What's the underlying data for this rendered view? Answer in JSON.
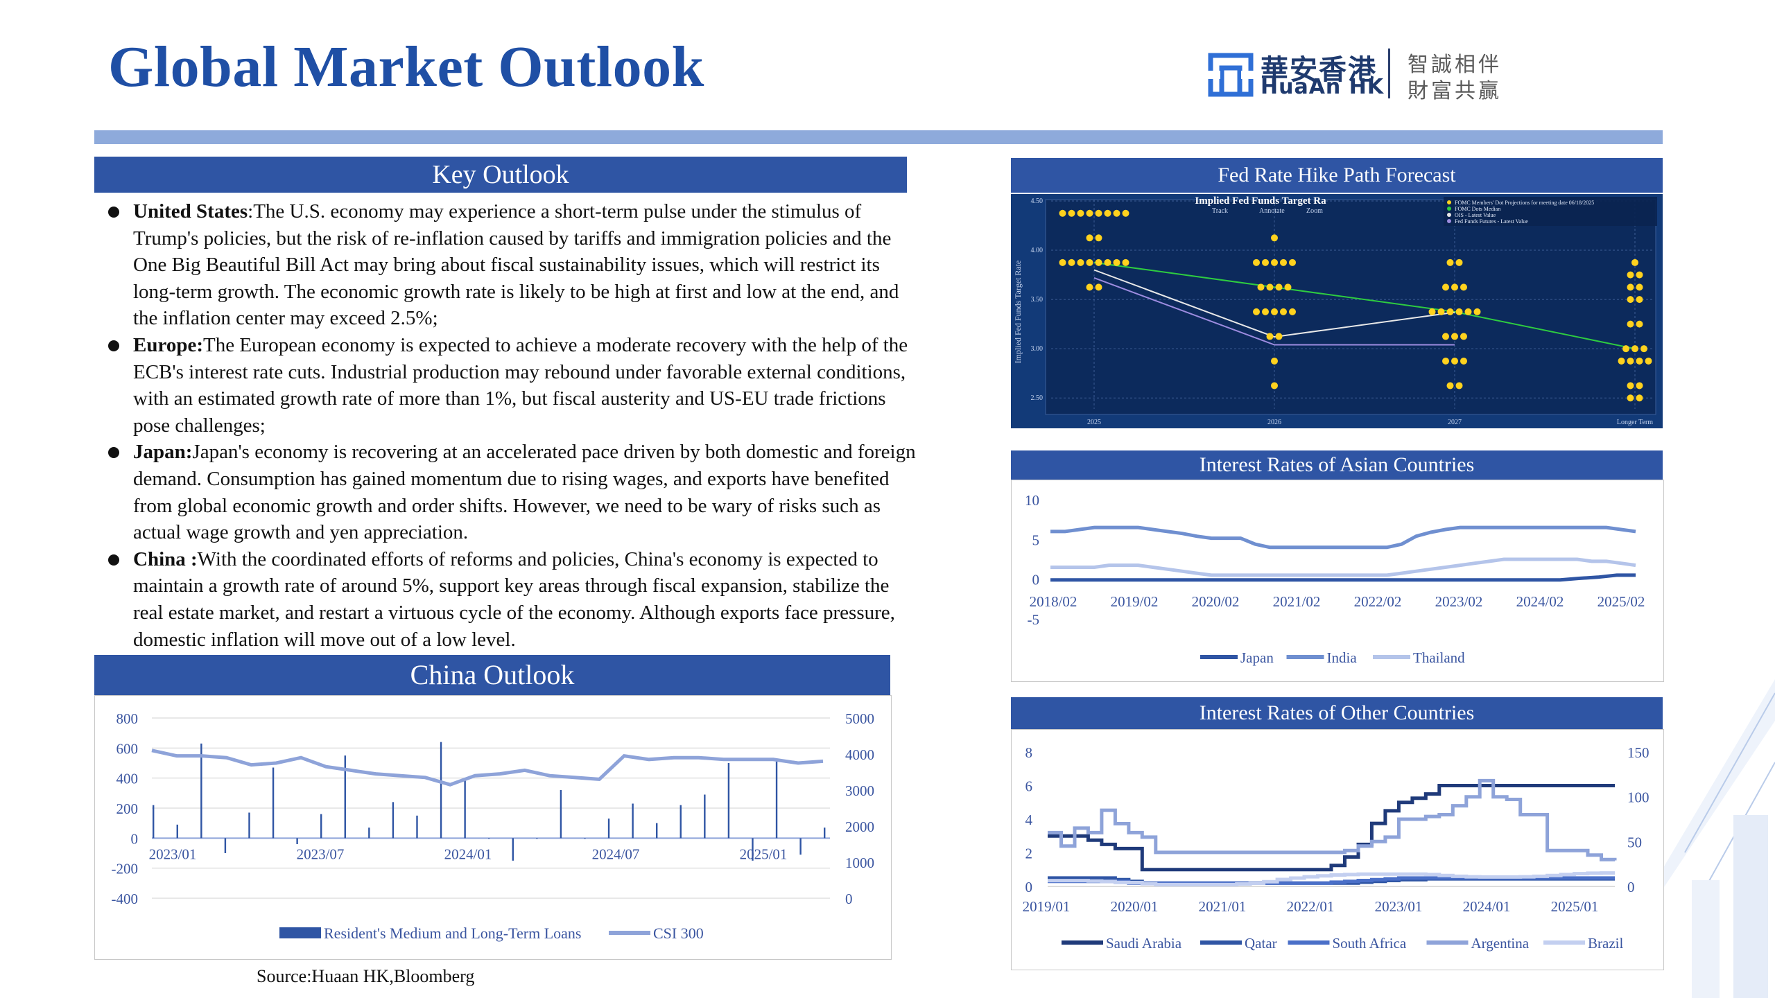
{
  "title": "Global Market Outlook",
  "logo": {
    "cn": "華安香港",
    "en": "HuaAn HK",
    "slogan1": "智誠相伴",
    "slogan2": "財富共贏"
  },
  "key_outlook": {
    "heading": "Key Outlook",
    "bullets": [
      {
        "label": "United States",
        "sep": ":",
        "text": "The U.S. economy may experience a short-term pulse under the stimulus of Trump's policies, but the risk of re-inflation caused by tariffs and immigration policies and the One Big Beautiful Bill Act may bring about fiscal sustainability issues, which will restrict its long-term growth. The economic growth rate is likely to be high at first and low at the end, and the inflation center may exceed 2.5%;"
      },
      {
        "label": "Europe:",
        "sep": "",
        "text": "The European economy is expected to achieve a moderate recovery with the help of the ECB's interest rate cuts. Industrial production may rebound under favorable external conditions, with an estimated growth rate of more than 1%, but fiscal austerity and US-EU trade frictions pose challenges;"
      },
      {
        "label": "Japan:",
        "sep": "",
        "text": "Japan's economy is recovering at an accelerated pace driven by both domestic and foreign demand. Consumption has gained momentum due to rising wages, and exports have benefited from global economic growth and order shifts. However, we need to be wary of risks such as actual wage growth and yen appreciation."
      },
      {
        "label": "China :",
        "sep": "",
        "text": "With the coordinated efforts of reforms and policies, China's economy is expected to maintain a growth rate of around 5%, support key areas through fiscal expansion, stabilize the real estate market, and restart a virtuous cycle of the economy. Although exports face pressure, domestic inflation will move out of a low level."
      }
    ]
  },
  "china_outlook": {
    "heading": "China Outlook"
  },
  "fed": {
    "heading": "Fed Rate Hike Path Forecast",
    "chart_title": "Implied Fed Funds Target Ra",
    "ylabel": "Implied Fed Funds Target Rate",
    "toolbar": [
      "Track",
      "Annotate",
      "Zoom"
    ],
    "legend": [
      "FOMC Members' Dot Projections for meeting date 06/18/2025",
      "FOMC Dots Median",
      "OIS - Latest Value",
      "Fed Funds Futures - Latest Value"
    ]
  },
  "source": "Source:Huaan HK,Bloomberg",
  "chart_data": [
    {
      "type": "line",
      "title": "China Outlook",
      "x_ticks": [
        "2023/01",
        "2023/07",
        "2024/01",
        "2024/07",
        "2025/01"
      ],
      "yleft_ticks": [
        "800",
        "600",
        "400",
        "200",
        "0",
        "-200",
        "-400"
      ],
      "yright_ticks": [
        "5000",
        "4000",
        "3000",
        "2000",
        "1000",
        "0"
      ],
      "ylim_left": [
        -400,
        800
      ],
      "ylim_right": [
        0,
        5000
      ],
      "series": [
        {
          "name": "Resident's Medium and Long-Term Loans",
          "kind": "bar",
          "axis": "left",
          "color": "#2f55a4",
          "values": [
            220,
            90,
            630,
            -100,
            170,
            470,
            -40,
            160,
            550,
            70,
            240,
            150,
            640,
            390,
            0,
            -150,
            0,
            320,
            0,
            130,
            230,
            100,
            220,
            290,
            500,
            -150,
            510,
            -110,
            70
          ]
        },
        {
          "name": "CSI 300",
          "kind": "line",
          "axis": "right",
          "color": "#8ea3d9",
          "values": [
            4100,
            3950,
            3950,
            3900,
            3700,
            3750,
            3900,
            3650,
            3550,
            3450,
            3400,
            3350,
            3150,
            3400,
            3450,
            3550,
            3400,
            3350,
            3300,
            3950,
            3850,
            3900,
            3900,
            3850,
            3850,
            3850,
            3750,
            3800
          ]
        }
      ]
    },
    {
      "type": "scatter",
      "title": "Implied Fed Funds Target Rate",
      "x_ticks": [
        "2025",
        "2026",
        "2027",
        "Longer Term"
      ],
      "y_ticks": [
        "4.50",
        "4.00",
        "3.50",
        "3.00",
        "2.50"
      ],
      "ylim": [
        2.375,
        4.5
      ],
      "dots": [
        {
          "x": "2025",
          "y": 4.375,
          "n": 8
        },
        {
          "x": "2025",
          "y": 4.125,
          "n": 2
        },
        {
          "x": "2025",
          "y": 3.875,
          "n": 8
        },
        {
          "x": "2025",
          "y": 3.625,
          "n": 2
        },
        {
          "x": "2026",
          "y": 4.125,
          "n": 1
        },
        {
          "x": "2026",
          "y": 3.875,
          "n": 5
        },
        {
          "x": "2026",
          "y": 3.625,
          "n": 4
        },
        {
          "x": "2026",
          "y": 3.375,
          "n": 5
        },
        {
          "x": "2026",
          "y": 3.125,
          "n": 2
        },
        {
          "x": "2026",
          "y": 2.875,
          "n": 1
        },
        {
          "x": "2026",
          "y": 2.625,
          "n": 1
        },
        {
          "x": "2027",
          "y": 3.875,
          "n": 2
        },
        {
          "x": "2027",
          "y": 3.625,
          "n": 3
        },
        {
          "x": "2027",
          "y": 3.375,
          "n": 6
        },
        {
          "x": "2027",
          "y": 3.125,
          "n": 3
        },
        {
          "x": "2027",
          "y": 2.875,
          "n": 3
        },
        {
          "x": "2027",
          "y": 2.625,
          "n": 2
        },
        {
          "x": "Longer Term",
          "y": 3.875,
          "n": 1
        },
        {
          "x": "Longer Term",
          "y": 3.75,
          "n": 2
        },
        {
          "x": "Longer Term",
          "y": 3.625,
          "n": 2
        },
        {
          "x": "Longer Term",
          "y": 3.5,
          "n": 2
        },
        {
          "x": "Longer Term",
          "y": 3.25,
          "n": 2
        },
        {
          "x": "Longer Term",
          "y": 3.0,
          "n": 3
        },
        {
          "x": "Longer Term",
          "y": 2.875,
          "n": 4
        },
        {
          "x": "Longer Term",
          "y": 2.625,
          "n": 2
        },
        {
          "x": "Longer Term",
          "y": 2.5,
          "n": 2
        }
      ],
      "lines": [
        {
          "name": "FOMC Dots Median",
          "color": "#2ecc40",
          "points": [
            [
              "2025",
              3.875
            ],
            [
              "2026",
              3.625
            ],
            [
              "2027",
              3.375
            ],
            [
              "Longer Term",
              3.0
            ]
          ]
        },
        {
          "name": "OIS - Latest Value",
          "color": "#e8e8e8",
          "points": [
            [
              "2025",
              3.8
            ],
            [
              "2026",
              3.12
            ],
            [
              "2027",
              3.37
            ]
          ]
        },
        {
          "name": "Fed Funds Futures - Latest Value",
          "color": "#9d8ce0",
          "points": [
            [
              "2025",
              3.72
            ],
            [
              "2026",
              3.04
            ],
            [
              "2027",
              3.04
            ]
          ]
        }
      ]
    },
    {
      "type": "line",
      "title": "Interest Rates of Asian Countries",
      "x_ticks": [
        "2018/02",
        "2019/02",
        "2020/02",
        "2021/02",
        "2022/02",
        "2023/02",
        "2024/02",
        "2025/02"
      ],
      "y_ticks": [
        "10",
        "5",
        "0",
        "-5"
      ],
      "ylim": [
        -5,
        10
      ],
      "series": [
        {
          "name": "Japan",
          "color": "#2f55a4",
          "values": [
            -0.1,
            -0.1,
            -0.1,
            -0.1,
            -0.1,
            -0.1,
            -0.1,
            -0.1,
            -0.1,
            -0.1,
            -0.1,
            -0.1,
            -0.1,
            -0.1,
            -0.1,
            -0.1,
            -0.1,
            -0.1,
            -0.1,
            -0.1,
            -0.1,
            -0.1,
            -0.1,
            -0.1,
            -0.1,
            -0.1,
            -0.1,
            -0.1,
            0.1,
            0.25,
            0.5,
            0.5
          ]
        },
        {
          "name": "India",
          "color": "#6f8fd0",
          "values": [
            6.0,
            6.0,
            6.25,
            6.5,
            6.5,
            6.5,
            6.5,
            6.25,
            6.0,
            5.75,
            5.4,
            5.15,
            5.15,
            5.15,
            4.4,
            4.0,
            4.0,
            4.0,
            4.0,
            4.0,
            4.0,
            4.0,
            4.0,
            4.0,
            4.4,
            5.4,
            5.9,
            6.25,
            6.5,
            6.5,
            6.5,
            6.5,
            6.5,
            6.5,
            6.5,
            6.5,
            6.5,
            6.5,
            6.5,
            6.25,
            6.0
          ]
        },
        {
          "name": "Thailand",
          "color": "#b4c4ea",
          "values": [
            1.5,
            1.5,
            1.5,
            1.5,
            1.75,
            1.75,
            1.75,
            1.5,
            1.25,
            1.0,
            0.75,
            0.5,
            0.5,
            0.5,
            0.5,
            0.5,
            0.5,
            0.5,
            0.5,
            0.5,
            0.5,
            0.5,
            0.5,
            0.5,
            0.75,
            1.0,
            1.25,
            1.5,
            1.75,
            2.0,
            2.25,
            2.5,
            2.5,
            2.5,
            2.5,
            2.5,
            2.5,
            2.25,
            2.25,
            2.0,
            1.75
          ]
        }
      ]
    },
    {
      "type": "line",
      "title": "Interest Rates of Other Countries",
      "x_ticks": [
        "2019/01",
        "2020/01",
        "2021/01",
        "2022/01",
        "2023/01",
        "2024/01",
        "2025/01"
      ],
      "yleft_ticks": [
        "8",
        "6",
        "4",
        "2",
        "0"
      ],
      "yright_ticks": [
        "150",
        "100",
        "50",
        "0"
      ],
      "ylim_left": [
        0,
        8
      ],
      "ylim_right": [
        0,
        150
      ],
      "series": [
        {
          "name": "Saudi Arabia",
          "axis": "left",
          "color": "#1f3a7a",
          "values": [
            3.0,
            3.0,
            3.0,
            2.75,
            2.5,
            2.25,
            2.25,
            1.0,
            1.0,
            1.0,
            1.0,
            1.0,
            1.0,
            1.0,
            1.0,
            1.0,
            1.0,
            1.0,
            1.0,
            1.0,
            1.0,
            1.25,
            1.75,
            2.5,
            3.75,
            4.5,
            5.0,
            5.25,
            5.5,
            6.0,
            6.0,
            6.0,
            6.0,
            6.0,
            6.0,
            6.0,
            6.0,
            6.0,
            6.0,
            6.0,
            6.0,
            6.0,
            6.0
          ]
        },
        {
          "name": "Qatar",
          "axis": "left",
          "color": "#2f55a4",
          "values": [
            0.5,
            0.5,
            0.5,
            0.5,
            0.5,
            0.4,
            0.3,
            0.2,
            0.2,
            0.2,
            0.2,
            0.2,
            0.2,
            0.2,
            0.2,
            0.2,
            0.2,
            0.2,
            0.2,
            0.2,
            0.2,
            0.2,
            0.2,
            0.25,
            0.3,
            0.35,
            0.4,
            0.4,
            0.45,
            0.45,
            0.45,
            0.45,
            0.45,
            0.45,
            0.45,
            0.45,
            0.45,
            0.45,
            0.45,
            0.45,
            0.45,
            0.45,
            0.45
          ]
        },
        {
          "name": "South Africa",
          "axis": "left",
          "color": "#4a6fc8",
          "values": [
            0.3,
            0.3,
            0.3,
            0.3,
            0.3,
            0.3,
            0.2,
            0.2,
            0.2,
            0.2,
            0.2,
            0.2,
            0.2,
            0.2,
            0.2,
            0.2,
            0.2,
            0.2,
            0.2,
            0.2,
            0.2,
            0.25,
            0.3,
            0.35,
            0.4,
            0.45,
            0.5,
            0.5,
            0.5,
            0.5,
            0.5,
            0.5,
            0.5,
            0.5,
            0.5,
            0.5,
            0.5,
            0.5,
            0.5,
            0.5,
            0.5,
            0.5,
            0.5
          ]
        },
        {
          "name": "Argentina",
          "axis": "right",
          "color": "#8ea3d9",
          "values": [
            60,
            45,
            65,
            60,
            85,
            70,
            60,
            55,
            38,
            38,
            38,
            38,
            38,
            38,
            38,
            38,
            38,
            38,
            38,
            38,
            38,
            38,
            40,
            45,
            50,
            55,
            75,
            75,
            78,
            80,
            90,
            100,
            118,
            100,
            97,
            80,
            80,
            40,
            40,
            40,
            35,
            30,
            29
          ]
        },
        {
          "name": "Brazil",
          "axis": "right",
          "color": "#c3cff0",
          "values": [
            6.5,
            6.5,
            6.5,
            6.0,
            5.5,
            4.5,
            4.25,
            3.0,
            2.0,
            2.0,
            2.0,
            2.0,
            2.0,
            2.0,
            2.75,
            3.5,
            5.25,
            7.75,
            9.25,
            10.75,
            11.75,
            12.75,
            13.25,
            13.75,
            13.75,
            13.75,
            13.75,
            13.75,
            13.25,
            12.25,
            11.25,
            10.75,
            10.5,
            10.5,
            10.5,
            10.75,
            11.25,
            12.25,
            13.25,
            14.25,
            14.75,
            15.0,
            15.0
          ]
        }
      ]
    }
  ]
}
